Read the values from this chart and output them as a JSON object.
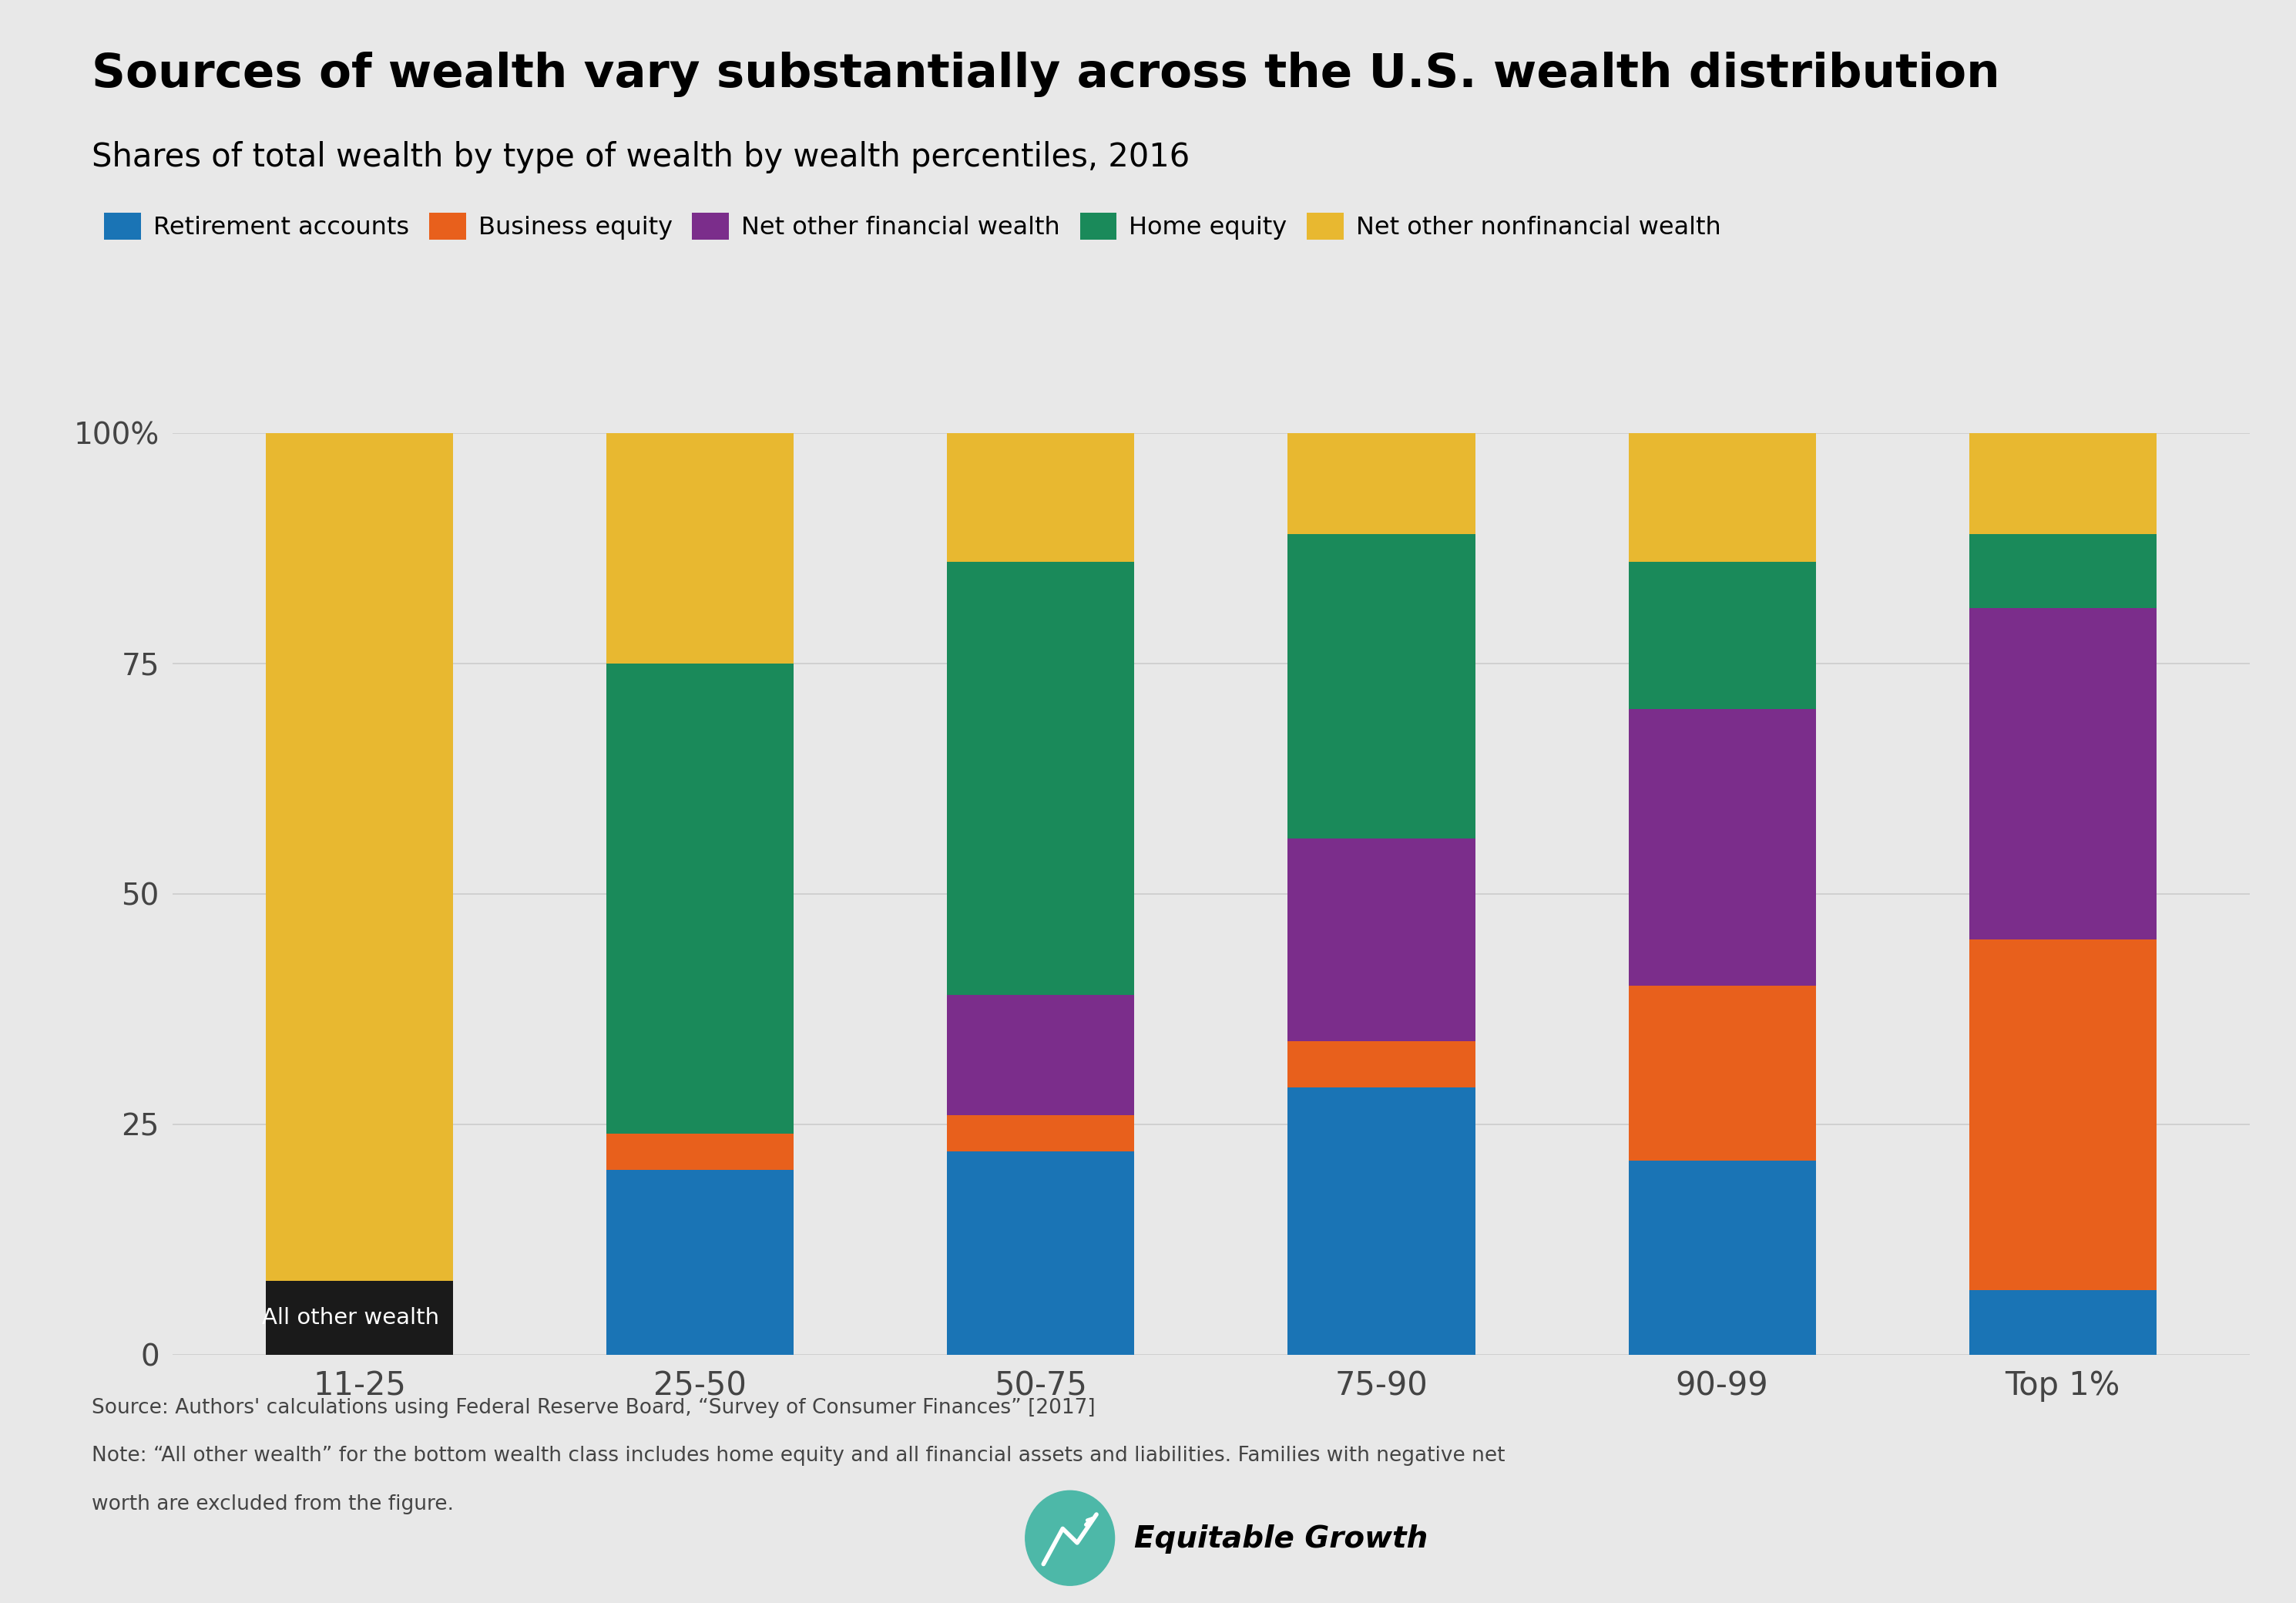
{
  "categories": [
    "11-25",
    "25-50",
    "50-75",
    "75-90",
    "90-99",
    "Top 1%"
  ],
  "stack_order": [
    "All other wealth",
    "Retirement accounts",
    "Business equity",
    "Net other financial wealth",
    "Home equity",
    "Net other nonfinancial wealth"
  ],
  "series": {
    "All other wealth": [
      8,
      0,
      0,
      0,
      0,
      0
    ],
    "Retirement accounts": [
      0,
      20,
      22,
      29,
      21,
      7
    ],
    "Business equity": [
      0,
      4,
      4,
      5,
      19,
      38
    ],
    "Net other financial wealth": [
      0,
      0,
      13,
      22,
      30,
      36
    ],
    "Home equity": [
      0,
      51,
      47,
      33,
      16,
      8
    ],
    "Net other nonfinancial wealth": [
      92,
      25,
      14,
      11,
      14,
      11
    ]
  },
  "colors": {
    "All other wealth": "#1a1a1a",
    "Retirement accounts": "#1a74b5",
    "Business equity": "#e8601c",
    "Net other financial wealth": "#7b2d8b",
    "Home equity": "#1a8a5a",
    "Net other nonfinancial wealth": "#e8b830"
  },
  "legend_order": [
    "Retirement accounts",
    "Business equity",
    "Net other financial wealth",
    "Home equity",
    "Net other nonfinancial wealth"
  ],
  "title": "Sources of wealth vary substantially across the U.S. wealth distribution",
  "subtitle": "Shares of total wealth by type of wealth by wealth percentiles, 2016",
  "source_line1": "Source: Authors' calculations using Federal Reserve Board, “Survey of Consumer Finances” [2017]",
  "source_line2": "Note: “All other wealth” for the bottom wealth class includes home equity and all financial assets and liabilities. Families with negative net",
  "source_line3": "worth are excluded from the figure.",
  "bg_color": "#e8e8e8",
  "bar_width": 0.55,
  "ytick_labels": [
    "0",
    "25",
    "50",
    "75",
    "100%"
  ],
  "yticks": [
    0,
    25,
    50,
    75,
    100
  ],
  "ylim": [
    0,
    100
  ],
  "annotation_text": "All other wealth",
  "annotation_color": "white"
}
